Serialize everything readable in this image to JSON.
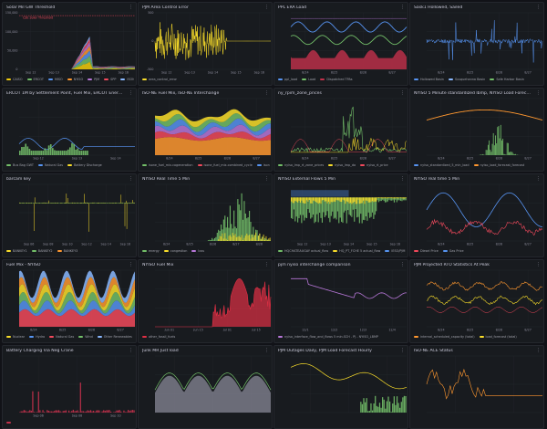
{
  "colors": {
    "background": "#111217",
    "panel_bg": "#181b1f",
    "panel_border": "#24272d",
    "title_text": "#ccccdc",
    "axis_text": "#8e8e9e",
    "gridline": "#26292f"
  },
  "panel_menu_icon": "⋮",
  "panels": [
    {
      "id": "p1",
      "title": "Solar Mil GW Threshold",
      "yticks": [
        "150,000",
        "100,000",
        "50,000",
        "0"
      ],
      "xticks": [
        "Sep 12",
        "Sep 13",
        "Sep 14",
        "Sep 15",
        "Sep 16"
      ],
      "threshold_label": "CSE Solar Threshold",
      "legend": [
        {
          "label": "CAISO",
          "color": "#f2cc0c"
        },
        {
          "label": "ERCOT",
          "color": "#73bf69"
        },
        {
          "label": "MISO",
          "color": "#5794f2"
        },
        {
          "label": "NYISO",
          "color": "#ff9830"
        },
        {
          "label": "PJM",
          "color": "#b877d9"
        },
        {
          "label": "SPP",
          "color": "#f2495c"
        },
        {
          "label": "ISONE",
          "color": "#8ab8ff"
        }
      ]
    },
    {
      "id": "p2",
      "title": "PJM Area Control Error",
      "yticks": [
        "500",
        "0",
        "-500"
      ],
      "xticks": [
        "Sep 12",
        "Sep 13",
        "Sep 14",
        "Sep 15",
        "Sep 16"
      ],
      "legend": [
        {
          "label": "area_control_error",
          "color": "#fade2a"
        }
      ]
    },
    {
      "id": "p3",
      "title": "PPL ERA Load",
      "yticks": [
        "",
        "",
        "",
        ""
      ],
      "xticks": [
        "8/24",
        "8/25",
        "8/26",
        "8/27"
      ],
      "legend": [
        {
          "label": "ppl_load",
          "color": "#5794f2"
        },
        {
          "label": "Load",
          "color": "#73bf69"
        },
        {
          "label": "Dispatched TPAs",
          "color": "#c4314b"
        }
      ]
    },
    {
      "id": "p4",
      "title": "Sask1 Hollowed, Sailed",
      "yticks": [
        "",
        "",
        "",
        ""
      ],
      "xticks": [
        "8/24",
        "8/25",
        "8/26",
        "8/27"
      ],
      "legend": [
        {
          "label": "Hollowed Basin",
          "color": "#5794f2"
        },
        {
          "label": "Susquehanna Basin",
          "color": "#8ab8ff"
        },
        {
          "label": "Safe Harbor Basin",
          "color": "#73bf69"
        }
      ]
    },
    {
      "id": "p5",
      "title": "ERCOT 1M by Settlement Point, Fuel Mix, ERCOT Energy Storage Resources",
      "yticks": [
        "",
        "",
        "",
        ""
      ],
      "xticks": [
        "Sep 12",
        "Sep 13",
        "Sep 14"
      ],
      "legend": [
        {
          "label": "Bus Bag GWT",
          "color": "#73bf69"
        },
        {
          "label": "Natural Gas",
          "color": "#5794f2"
        },
        {
          "label": "Battery Discharge",
          "color": "#fade2a"
        }
      ]
    },
    {
      "id": "p6",
      "title": "ISO-NE Fuel Mix, ISO-NE Interchange",
      "yticks": [
        "",
        "",
        "",
        ""
      ],
      "xticks": [
        "8/24",
        "8/25",
        "8/26",
        "8/27"
      ],
      "legend": [
        {
          "label": "isone_fuel_mix.cogeneration",
          "color": "#73bf69"
        },
        {
          "label": "isone_fuel_mix.combined_cycle",
          "color": "#f2495c"
        },
        {
          "label": "isone_fuel_mix",
          "color": "#5794f2"
        }
      ]
    },
    {
      "id": "p7",
      "title": "ny_rpim_zone_prices",
      "yticks": [
        "",
        "",
        ""
      ],
      "xticks": [
        "8/24",
        "8/25",
        "8/26",
        "8/27"
      ],
      "legend": [
        {
          "label": "nyiso_lmp_rt_zone_prices",
          "color": "#73bf69"
        },
        {
          "label": "nyiso_lmp_da",
          "color": "#fade2a"
        },
        {
          "label": "nyiso_rt_price",
          "color": "#f2495c"
        }
      ]
    },
    {
      "id": "p8",
      "title": "NYISO 5 Minute standardized lbmp, NYISO Load Forecast, NYISO LMP Real Time 5 Min",
      "yticks": [
        "",
        "",
        "",
        ""
      ],
      "xticks": [
        "8/24",
        "8/25",
        "8/26",
        "8/27"
      ],
      "legend": [
        {
          "label": "nyiso_standardized_5_min_load",
          "color": "#5794f2"
        },
        {
          "label": "nyiso_load_forecast_forecast",
          "color": "#ff9830"
        }
      ]
    },
    {
      "id": "p9",
      "title": "barcam key",
      "yticks": [
        "",
        "",
        ""
      ],
      "xticks": [
        "Sep 06",
        "Sep 08",
        "Sep 10",
        "Sep 12",
        "Sep 14",
        "Sep 16"
      ],
      "legend": [
        {
          "label": "BANKEY1",
          "color": "#fade2a"
        },
        {
          "label": "BANKEY2",
          "color": "#73bf69"
        },
        {
          "label": "BANKEY3",
          "color": "#ff9830"
        }
      ]
    },
    {
      "id": "p10",
      "title": "NYISO Real Time 5 Min",
      "yticks": [
        "",
        "",
        "",
        ""
      ],
      "xticks": [
        "8/24",
        "8/25",
        "8/26",
        "8/27",
        "8/28"
      ],
      "legend": [
        {
          "label": "energy",
          "color": "#73bf69"
        },
        {
          "label": "congestion",
          "color": "#fade2a"
        },
        {
          "label": "loss",
          "color": "#b877d9"
        }
      ]
    },
    {
      "id": "p11",
      "title": "NYISO External Flows 5 Min",
      "yticks": [
        "",
        "",
        ""
      ],
      "xticks": [
        "Sep 12",
        "Sep 13",
        "Sep 14",
        "Sep 15",
        "Sep 16"
      ],
      "legend": [
        {
          "label": "HQCHATEAUGAY actual_flow",
          "color": "#73bf69"
        },
        {
          "label": "HQ_PT_FCHE 5 actual_flow",
          "color": "#fade2a"
        },
        {
          "label": "IESO/PJM AC",
          "color": "#5794f2"
        }
      ]
    },
    {
      "id": "p12",
      "title": "NYISO real time 5 Min",
      "yticks": [
        "",
        "",
        "",
        ""
      ],
      "xticks": [
        "8/24",
        "8/25",
        "8/26",
        "8/27"
      ],
      "legend": [
        {
          "label": "Diesel Price",
          "color": "#f2495c"
        },
        {
          "label": "Gas Price",
          "color": "#5794f2"
        }
      ]
    },
    {
      "id": "p13",
      "title": "Fuel Mix - NYISO",
      "yticks": [
        "",
        "",
        "",
        ""
      ],
      "xticks": [
        "8/24",
        "8/25",
        "8/26",
        "8/27"
      ],
      "legend": [
        {
          "label": "Nuclear",
          "color": "#fade2a"
        },
        {
          "label": "Hydro",
          "color": "#5794f2"
        },
        {
          "label": "Natural Gas",
          "color": "#f2495c"
        },
        {
          "label": "Wind",
          "color": "#73bf69"
        },
        {
          "label": "Other Renewables",
          "color": "#8ab8ff"
        },
        {
          "label": "Oil",
          "color": "#ff9830"
        }
      ]
    },
    {
      "id": "p14",
      "title": "NYISO Fuel Mix",
      "yticks": [
        "",
        "",
        "",
        ""
      ],
      "xticks": [
        "Jun 01",
        "Jun 15",
        "Jul 01",
        "Jul 15"
      ],
      "legend": [
        {
          "label": "other_fossil_fuels",
          "color": "#e02f44"
        }
      ]
    },
    {
      "id": "p15",
      "title": "pjm nyiso interchange comparison",
      "yticks": [
        "",
        "",
        "",
        ""
      ],
      "xticks": [
        "12/1",
        "12/2",
        "12/3",
        "12/4"
      ],
      "legend": [
        {
          "label": "nyiso_interface_flow_and_flows 5 min.SCH - PJ - NYISO_LBMP",
          "color": "#b877d9"
        }
      ]
    },
    {
      "id": "p16",
      "title": "PJM Projected RTO Statistics At Peak",
      "yticks": [
        "",
        "",
        ""
      ],
      "xticks": [
        "8/24",
        "8/25",
        "8/26",
        "8/27"
      ],
      "legend": [
        {
          "label": "internal_scheduled_capacity (total)",
          "color": "#ff9830"
        },
        {
          "label": "load_forecast (total)",
          "color": "#fade2a"
        }
      ]
    },
    {
      "id": "p17",
      "title": "Battery Charging Via Neg Crane",
      "yticks": [
        "",
        "",
        ""
      ],
      "xticks": [
        "Sep 06",
        "Sep 08",
        "Sep 10"
      ],
      "legend": [
        {
          "label": "",
          "color": "#c4314b"
        }
      ]
    },
    {
      "id": "p18",
      "title": "Junk MR Just load",
      "yticks": [
        "",
        "",
        "",
        ""
      ],
      "xticks": [
        "",
        "",
        ""
      ],
      "legend": []
    },
    {
      "id": "p19",
      "title": "PJM Outages Daily, PJM Load Forecast Hourly",
      "yticks": [
        "",
        "",
        "",
        ""
      ],
      "xticks": [
        "",
        "",
        ""
      ],
      "legend": []
    },
    {
      "id": "p20",
      "title": "ISO-NE ACE Status",
      "yticks": [
        "",
        "",
        ""
      ],
      "xticks": [
        "",
        ""
      ],
      "legend": []
    }
  ]
}
